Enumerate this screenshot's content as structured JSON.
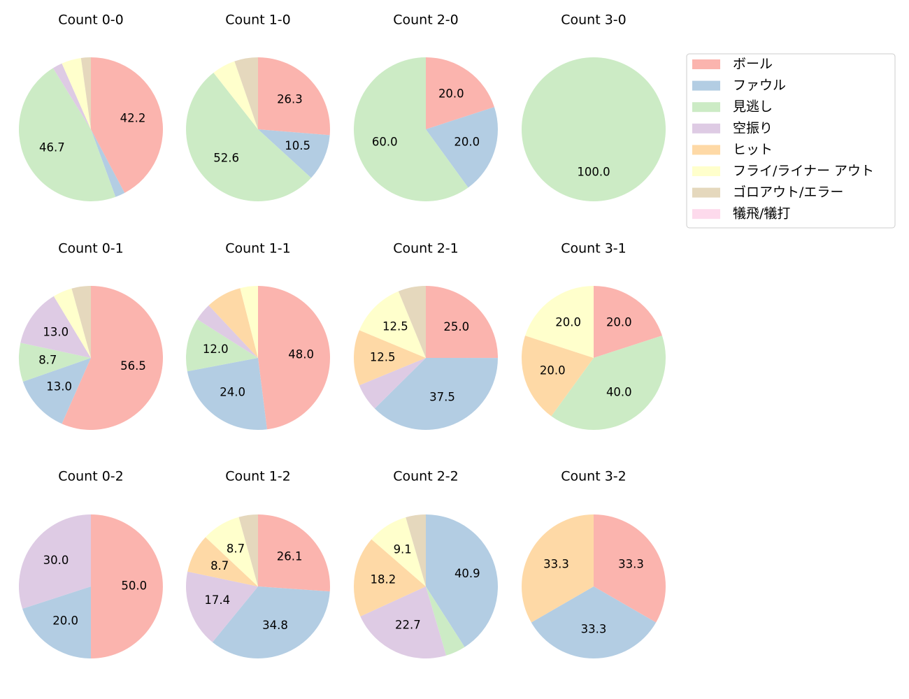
{
  "legend": {
    "entries": [
      "ボール",
      "ファウル",
      "見逃し",
      "空振り",
      "ヒット",
      "フライ/ライナー アウト",
      "ゴロアウト/エラー",
      "犠飛/犠打"
    ],
    "colors": [
      "#fbb4ae",
      "#b3cde3",
      "#ccebc5",
      "#decbe4",
      "#fed9a6",
      "#ffffcc",
      "#e5d8bd",
      "#fddaec"
    ]
  },
  "chart_data": [
    {
      "type": "pie",
      "title": "Count 0-0",
      "values": [
        42.2,
        2.2,
        46.7,
        2.2,
        0,
        4.4,
        2.2,
        0
      ],
      "value_labels": [
        "42.2",
        null,
        "46.7",
        null,
        null,
        null,
        null,
        null
      ]
    },
    {
      "type": "pie",
      "title": "Count 1-0",
      "values": [
        26.3,
        10.5,
        52.6,
        0,
        0,
        5.3,
        5.3,
        0
      ],
      "value_labels": [
        "26.3",
        "10.5",
        "52.6",
        null,
        null,
        null,
        null,
        null
      ]
    },
    {
      "type": "pie",
      "title": "Count 2-0",
      "values": [
        20,
        20,
        60,
        0,
        0,
        0,
        0,
        0
      ],
      "value_labels": [
        "20.0",
        "20.0",
        "60.0",
        null,
        null,
        null,
        null,
        null
      ]
    },
    {
      "type": "pie",
      "title": "Count 3-0",
      "values": [
        0,
        0,
        100,
        0,
        0,
        0,
        0,
        0
      ],
      "value_labels": [
        null,
        null,
        "100.0",
        null,
        null,
        null,
        null,
        null
      ]
    },
    {
      "type": "pie",
      "title": "Count 0-1",
      "values": [
        56.5,
        13.0,
        8.7,
        13.0,
        0,
        4.3,
        4.3,
        0
      ],
      "value_labels": [
        "56.5",
        "13.0",
        "8.7",
        "13.0",
        null,
        null,
        null,
        null
      ]
    },
    {
      "type": "pie",
      "title": "Count 1-1",
      "values": [
        48,
        24,
        12,
        4,
        8,
        4,
        0,
        0
      ],
      "value_labels": [
        "48.0",
        "24.0",
        "12.0",
        null,
        null,
        null,
        null,
        null
      ]
    },
    {
      "type": "pie",
      "title": "Count 2-1",
      "values": [
        25,
        37.5,
        0,
        6.2,
        12.5,
        12.5,
        6.2,
        0
      ],
      "value_labels": [
        "25.0",
        "37.5",
        null,
        null,
        "12.5",
        "12.5",
        null,
        null
      ]
    },
    {
      "type": "pie",
      "title": "Count 3-1",
      "values": [
        20,
        0,
        40,
        0,
        20,
        20,
        0,
        0
      ],
      "value_labels": [
        "20.0",
        null,
        "40.0",
        null,
        "20.0",
        "20.0",
        null,
        null
      ]
    },
    {
      "type": "pie",
      "title": "Count 0-2",
      "values": [
        50,
        20,
        0,
        30,
        0,
        0,
        0,
        0
      ],
      "value_labels": [
        "50.0",
        "20.0",
        null,
        "30.0",
        null,
        null,
        null,
        null
      ]
    },
    {
      "type": "pie",
      "title": "Count 1-2",
      "values": [
        26.1,
        34.8,
        0,
        17.4,
        8.7,
        8.7,
        4.3,
        0
      ],
      "value_labels": [
        "26.1",
        "34.8",
        null,
        "17.4",
        "8.7",
        "8.7",
        null,
        null
      ]
    },
    {
      "type": "pie",
      "title": "Count 2-2",
      "values": [
        0,
        40.9,
        4.5,
        22.7,
        18.2,
        9.1,
        4.5,
        0
      ],
      "value_labels": [
        null,
        "40.9",
        null,
        "22.7",
        "18.2",
        "9.1",
        null,
        null
      ]
    },
    {
      "type": "pie",
      "title": "Count 3-2",
      "values": [
        33.3,
        33.3,
        0,
        0,
        33.3,
        0,
        0,
        0
      ],
      "value_labels": [
        "33.3",
        "33.3",
        null,
        null,
        "33.3",
        null,
        null,
        null
      ]
    }
  ]
}
